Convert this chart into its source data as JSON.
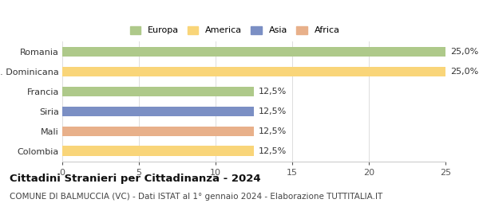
{
  "categories": [
    "Colombia",
    "Mali",
    "Siria",
    "Francia",
    "Rep. Dominicana",
    "Romania"
  ],
  "values": [
    12.5,
    12.5,
    12.5,
    12.5,
    25.0,
    25.0
  ],
  "bar_colors": [
    "#f9d579",
    "#e8b08a",
    "#7b8fc4",
    "#aec98a",
    "#f9d579",
    "#aec98a"
  ],
  "bar_labels": [
    "12,5%",
    "12,5%",
    "12,5%",
    "12,5%",
    "25,0%",
    "25,0%"
  ],
  "xlim": [
    0,
    25
  ],
  "xticks": [
    0,
    5,
    10,
    15,
    20,
    25
  ],
  "title": "Cittadini Stranieri per Cittadinanza - 2024",
  "subtitle": "COMUNE DI BALMUCCIA (VC) - Dati ISTAT al 1° gennaio 2024 - Elaborazione TUTTITALIA.IT",
  "legend_labels": [
    "Europa",
    "America",
    "Asia",
    "Africa"
  ],
  "legend_colors": [
    "#aec98a",
    "#f9d579",
    "#7b8fc4",
    "#e8b08a"
  ],
  "background_color": "#ffffff",
  "bar_height": 0.5,
  "label_fontsize": 8,
  "title_fontsize": 9.5,
  "subtitle_fontsize": 7.5,
  "tick_fontsize": 8
}
